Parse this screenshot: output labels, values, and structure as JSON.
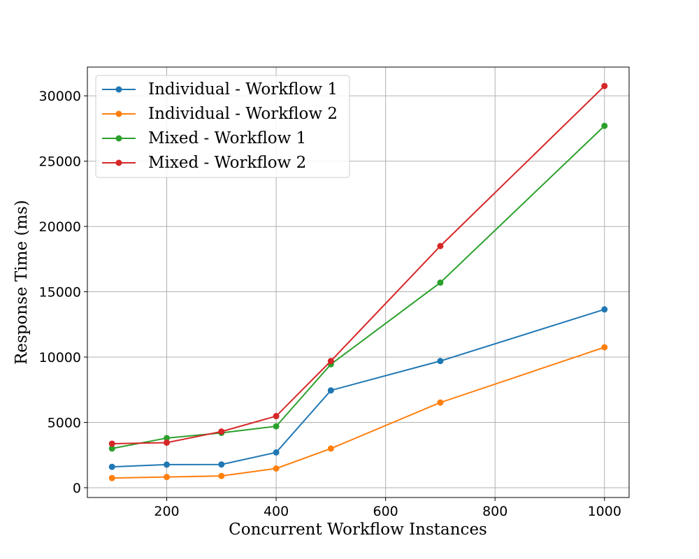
{
  "chart_data": {
    "type": "line",
    "title": "",
    "xlabel": "Concurrent Workflow Instances",
    "ylabel": "Response Time (ms)",
    "xlim": [
      55,
      1045
    ],
    "ylim": [
      -750,
      32200
    ],
    "xticks": [
      200,
      400,
      600,
      800,
      1000
    ],
    "yticks": [
      0,
      5000,
      10000,
      15000,
      20000,
      25000,
      30000
    ],
    "grid": true,
    "legend_position": "top-left",
    "x": [
      100,
      200,
      300,
      400,
      500,
      700,
      1000
    ],
    "series": [
      {
        "name": "Individual - Workflow 1",
        "color": "#1f77b4",
        "values": [
          1600,
          1770,
          1780,
          2700,
          7450,
          9700,
          13650
        ]
      },
      {
        "name": "Individual - Workflow 2",
        "color": "#ff7f0e",
        "values": [
          740,
          820,
          900,
          1470,
          3000,
          6520,
          10750
        ]
      },
      {
        "name": "Mixed - Workflow 1",
        "color": "#2ca02c",
        "values": [
          3000,
          3800,
          4200,
          4700,
          9450,
          15700,
          27700
        ]
      },
      {
        "name": "Mixed - Workflow 2",
        "color": "#d62728",
        "values": [
          3370,
          3450,
          4300,
          5480,
          9700,
          18500,
          30750
        ]
      }
    ]
  }
}
